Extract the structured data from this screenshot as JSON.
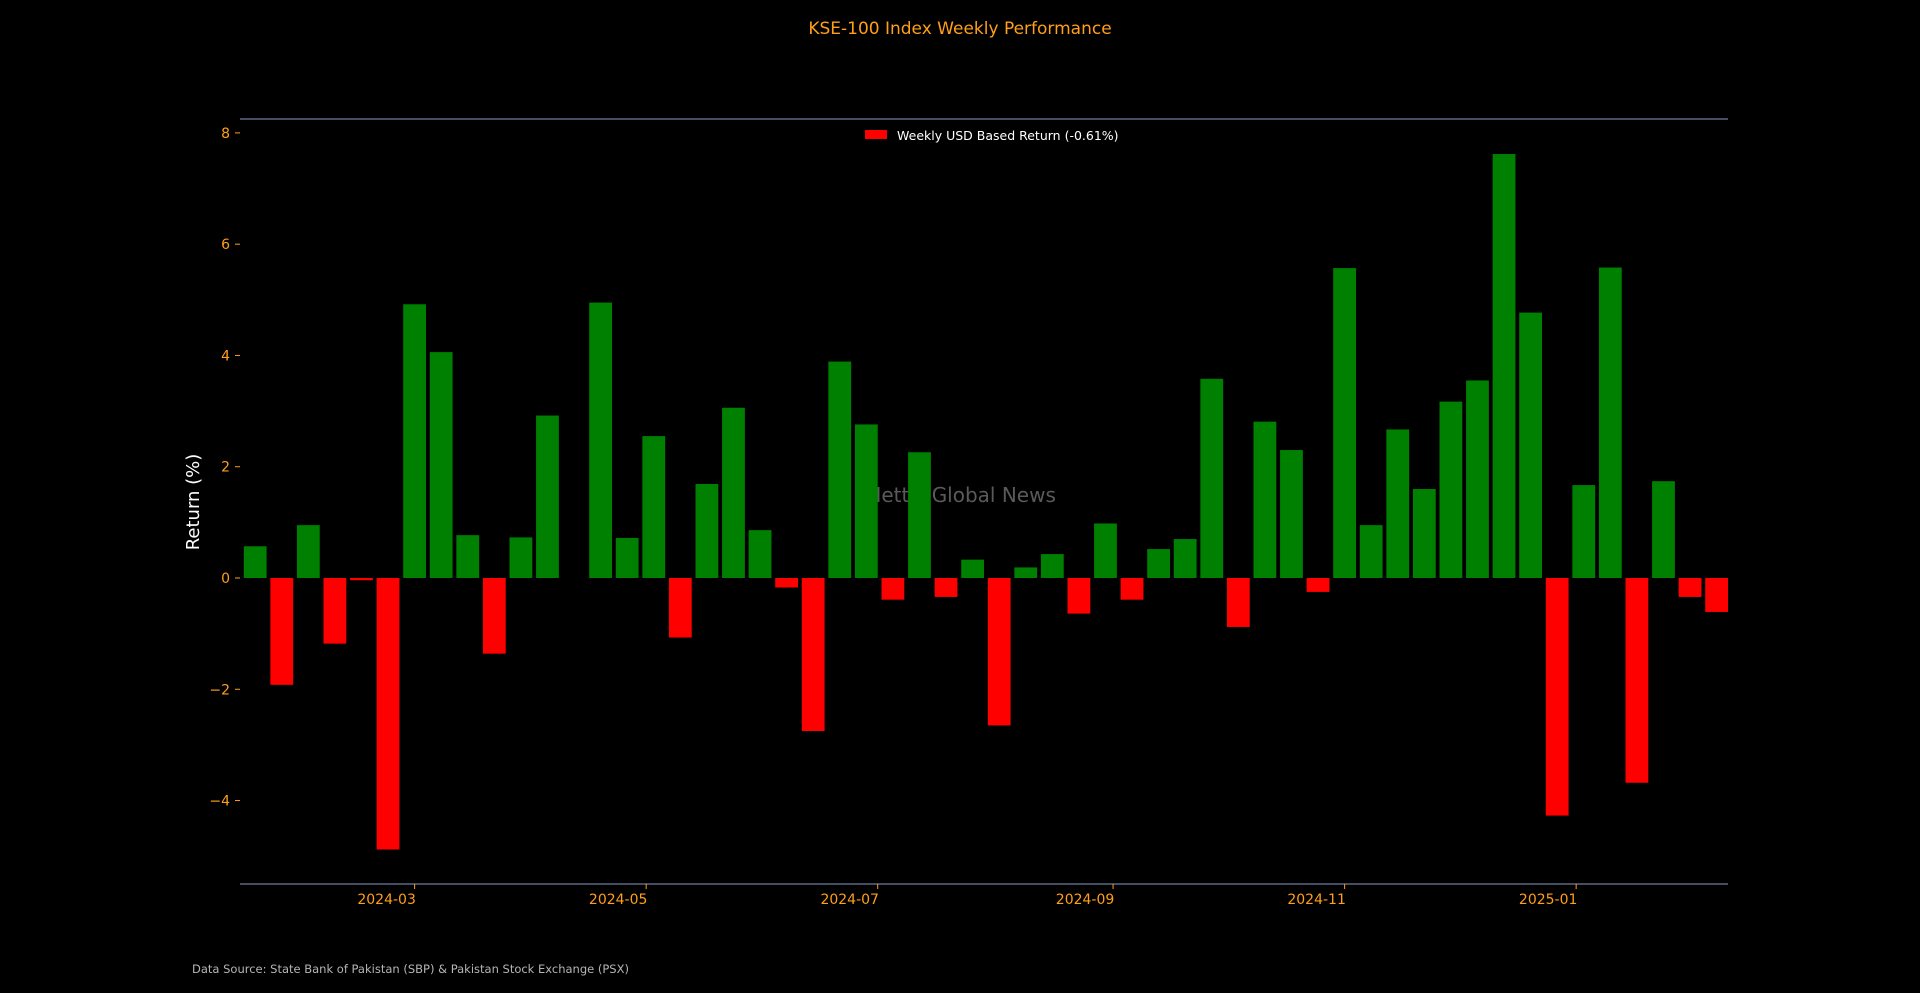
{
  "chart_data": {
    "type": "bar",
    "title": "KSE-100 Index Weekly Performance",
    "ylabel": "Return (%)",
    "xlabel": "",
    "ylim": [
      -5.5,
      8.25
    ],
    "yticks": [
      -4,
      -2,
      0,
      2,
      4,
      6,
      8
    ],
    "xlim": [
      "2024-01-15",
      "2025-02-10"
    ],
    "xticks": [
      "2024-03",
      "2024-05",
      "2024-07",
      "2024-09",
      "2024-11",
      "2025-01"
    ],
    "grid": false,
    "legend": {
      "label": "Weekly USD Based Return (-0.61%)",
      "placement": "top-center"
    },
    "colors": {
      "positive": "#008000",
      "negative": "#ff0000",
      "axis": "#8a9cc4",
      "tick": "#ff9f1a"
    },
    "watermark": "Mettis Global News",
    "series": [
      {
        "x": [
          "2024-01-19",
          "2024-01-26",
          "2024-02-02",
          "2024-02-09",
          "2024-02-16",
          "2024-02-23",
          "2024-03-01",
          "2024-03-08",
          "2024-03-15",
          "2024-03-22",
          "2024-03-29",
          "2024-04-05",
          "2024-04-12",
          "2024-04-19",
          "2024-04-26",
          "2024-05-03",
          "2024-05-10",
          "2024-05-17",
          "2024-05-24",
          "2024-05-31",
          "2024-06-07",
          "2024-06-14",
          "2024-06-21",
          "2024-06-28",
          "2024-07-05",
          "2024-07-12",
          "2024-07-19",
          "2024-07-26",
          "2024-08-02",
          "2024-08-09",
          "2024-08-16",
          "2024-08-23",
          "2024-08-30",
          "2024-09-06",
          "2024-09-13",
          "2024-09-20",
          "2024-09-27",
          "2024-10-04",
          "2024-10-11",
          "2024-10-18",
          "2024-10-25",
          "2024-11-01",
          "2024-11-08",
          "2024-11-15",
          "2024-11-22",
          "2024-11-29",
          "2024-12-06",
          "2024-12-13",
          "2024-12-20",
          "2024-12-27",
          "2025-01-03",
          "2025-01-10",
          "2025-01-17",
          "2025-01-24",
          "2025-01-31",
          "2025-02-07"
        ],
        "values": [
          0.57,
          -1.92,
          0.95,
          -1.18,
          -0.04,
          -4.88,
          4.92,
          4.06,
          0.77,
          -1.36,
          0.73,
          2.92,
          null,
          4.95,
          0.72,
          2.55,
          -1.07,
          1.69,
          3.06,
          0.86,
          -0.17,
          -2.75,
          3.89,
          2.76,
          -0.39,
          2.26,
          -0.34,
          0.33,
          -2.65,
          0.19,
          0.43,
          -0.64,
          0.98,
          -0.39,
          0.52,
          0.7,
          3.58,
          -0.88,
          2.81,
          2.3,
          -0.25,
          5.57,
          0.95,
          2.67,
          1.6,
          3.17,
          3.55,
          7.62,
          4.77,
          -4.27,
          1.67,
          5.58,
          -3.68,
          1.74,
          -0.34,
          -0.61
        ]
      }
    ]
  },
  "footer": {
    "source": "Data Source: State Bank of Pakistan (SBP) & Pakistan Stock Exchange (PSX)"
  }
}
